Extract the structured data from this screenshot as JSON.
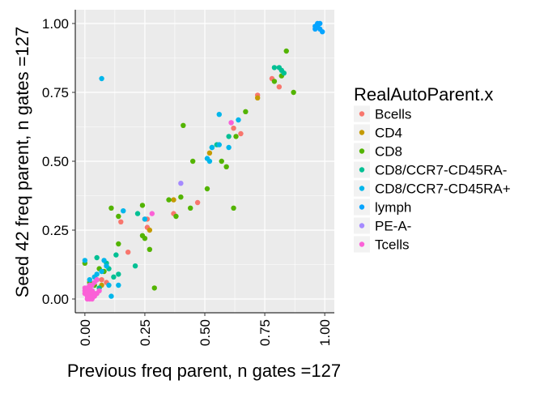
{
  "chart_data": {
    "type": "scatter",
    "title": "",
    "xlabel": "Previous freq parent, n gates =127",
    "ylabel": "Seed 42 freq parent, n gates =127",
    "xlim": [
      -0.04,
      1.04
    ],
    "ylim": [
      -0.05,
      1.05
    ],
    "xticks": [
      0.0,
      0.25,
      0.5,
      0.75,
      1.0
    ],
    "xtick_labels": [
      "0.00",
      "0.25",
      "0.50",
      "0.75",
      "1.00"
    ],
    "yticks": [
      0.0,
      0.25,
      0.5,
      0.75,
      1.0
    ],
    "ytick_labels": [
      "0.00",
      "0.25",
      "0.50",
      "0.75",
      "1.00"
    ],
    "grid": true,
    "legend_position": "right",
    "legend_title": "RealAutoParent.x",
    "colors": {
      "panel_background": "#ebebeb",
      "grid": "#ffffff"
    },
    "series": [
      {
        "name": "Bcells",
        "color": "#F8766D",
        "points": [
          [
            0.15,
            0.28
          ],
          [
            0.18,
            0.17
          ],
          [
            0.25,
            0.29
          ],
          [
            0.26,
            0.29
          ],
          [
            0.26,
            0.26
          ],
          [
            0.37,
            0.31
          ],
          [
            0.47,
            0.35
          ],
          [
            0.62,
            0.62
          ],
          [
            0.65,
            0.6
          ],
          [
            0.72,
            0.74
          ],
          [
            0.78,
            0.8
          ],
          [
            0.81,
            0.77
          ],
          [
            0.09,
            0.06
          ],
          [
            0.07,
            0.07
          ]
        ]
      },
      {
        "name": "CD4",
        "color": "#C49A00",
        "points": [
          [
            0.27,
            0.25
          ],
          [
            0.37,
            0.36
          ],
          [
            0.52,
            0.53
          ],
          [
            0.72,
            0.73
          ],
          [
            0.07,
            0.05
          ],
          [
            0.03,
            0.02
          ]
        ]
      },
      {
        "name": "CD8",
        "color": "#53B400",
        "points": [
          [
            0.02,
            0.06
          ],
          [
            0.05,
            0.07
          ],
          [
            0.11,
            0.33
          ],
          [
            0.14,
            0.3
          ],
          [
            0.14,
            0.2
          ],
          [
            0.24,
            0.34
          ],
          [
            0.24,
            0.23
          ],
          [
            0.25,
            0.22
          ],
          [
            0.27,
            0.18
          ],
          [
            0.29,
            0.04
          ],
          [
            0.35,
            0.36
          ],
          [
            0.38,
            0.3
          ],
          [
            0.4,
            0.37
          ],
          [
            0.41,
            0.63
          ],
          [
            0.44,
            0.33
          ],
          [
            0.45,
            0.5
          ],
          [
            0.51,
            0.4
          ],
          [
            0.57,
            0.5
          ],
          [
            0.59,
            0.48
          ],
          [
            0.62,
            0.33
          ],
          [
            0.63,
            0.59
          ],
          [
            0.67,
            0.68
          ],
          [
            0.79,
            0.79
          ],
          [
            0.82,
            0.81
          ],
          [
            0.84,
            0.9
          ],
          [
            0.87,
            0.75
          ],
          [
            0.0,
            0.13
          ],
          [
            0.04,
            0.05
          ],
          [
            0.08,
            0.1
          ],
          [
            0.06,
            0.11
          ]
        ]
      },
      {
        "name": "CD8/CCR7-CD45RA-",
        "color": "#00C094",
        "points": [
          [
            0.05,
            0.15
          ],
          [
            0.09,
            0.13
          ],
          [
            0.1,
            0.11
          ],
          [
            0.13,
            0.16
          ],
          [
            0.21,
            0.12
          ],
          [
            0.22,
            0.31
          ],
          [
            0.53,
            0.55
          ],
          [
            0.55,
            0.56
          ],
          [
            0.6,
            0.59
          ],
          [
            0.79,
            0.84
          ],
          [
            0.81,
            0.84
          ],
          [
            0.82,
            0.83
          ],
          [
            0.83,
            0.82
          ],
          [
            0.12,
            0.08
          ],
          [
            0.14,
            0.09
          ],
          [
            0.06,
            0.04
          ]
        ]
      },
      {
        "name": "CD8/CCR7-CD45RA+",
        "color": "#00B6EB",
        "points": [
          [
            0.07,
            0.8
          ],
          [
            0.02,
            0.07
          ],
          [
            0.03,
            0.03
          ],
          [
            0.05,
            0.09
          ],
          [
            0.07,
            0.1
          ],
          [
            0.09,
            0.12
          ],
          [
            0.11,
            0.01
          ],
          [
            0.14,
            0.05
          ],
          [
            0.16,
            0.32
          ],
          [
            0.25,
            0.29
          ],
          [
            0.51,
            0.51
          ],
          [
            0.52,
            0.5
          ],
          [
            0.53,
            0.55
          ],
          [
            0.56,
            0.56
          ],
          [
            0.56,
            0.67
          ],
          [
            0.6,
            0.55
          ],
          [
            0.64,
            0.65
          ],
          [
            0.0,
            0.14
          ],
          [
            0.04,
            0.08
          ],
          [
            0.08,
            0.14
          ],
          [
            0.1,
            0.05
          ]
        ]
      },
      {
        "name": "lymph",
        "color": "#06A4FF",
        "points": [
          [
            0.96,
            0.98
          ],
          [
            0.97,
            0.99
          ],
          [
            0.97,
            1.0
          ],
          [
            0.98,
            1.0
          ],
          [
            0.98,
            0.98
          ],
          [
            0.99,
            0.97
          ],
          [
            0.96,
            0.99
          ]
        ]
      },
      {
        "name": "PE-A-",
        "color": "#A58AFF",
        "points": [
          [
            0.4,
            0.42
          ],
          [
            0.61,
            0.64
          ],
          [
            0.02,
            0.03
          ]
        ]
      },
      {
        "name": "Tcells",
        "color": "#FB61D7",
        "points": [
          [
            0.0,
            0.02
          ],
          [
            0.0,
            0.03
          ],
          [
            0.01,
            0.01
          ],
          [
            0.01,
            0.02
          ],
          [
            0.01,
            0.03
          ],
          [
            0.01,
            0.04
          ],
          [
            0.02,
            0.0
          ],
          [
            0.02,
            0.01
          ],
          [
            0.02,
            0.02
          ],
          [
            0.02,
            0.04
          ],
          [
            0.03,
            0.0
          ],
          [
            0.03,
            0.01
          ],
          [
            0.03,
            0.03
          ],
          [
            0.04,
            0.01
          ],
          [
            0.04,
            0.02
          ],
          [
            0.04,
            0.06
          ],
          [
            0.05,
            0.02
          ],
          [
            0.05,
            0.07
          ],
          [
            0.06,
            0.03
          ],
          [
            0.03,
            0.05
          ],
          [
            0.01,
            0.0
          ],
          [
            0.0,
            0.04
          ],
          [
            0.02,
            0.05
          ],
          [
            0.28,
            0.31
          ],
          [
            0.61,
            0.64
          ]
        ]
      }
    ]
  }
}
